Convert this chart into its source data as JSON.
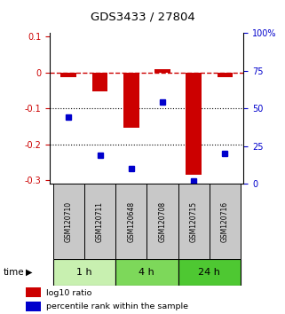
{
  "title": "GDS3433 / 27804",
  "samples": [
    "GSM120710",
    "GSM120711",
    "GSM120648",
    "GSM120708",
    "GSM120715",
    "GSM120716"
  ],
  "time_groups": [
    {
      "label": "1 h",
      "color": "#c8f0b0",
      "samples": [
        0,
        1
      ]
    },
    {
      "label": "4 h",
      "color": "#7dd85a",
      "samples": [
        2,
        3
      ]
    },
    {
      "label": "24 h",
      "color": "#4ec832",
      "samples": [
        4,
        5
      ]
    }
  ],
  "log10_ratio": [
    -0.012,
    -0.052,
    -0.155,
    0.008,
    -0.285,
    -0.012
  ],
  "percentile_rank": [
    44,
    19,
    10,
    54,
    2,
    20
  ],
  "bar_color": "#cc0000",
  "dot_color": "#0000cc",
  "ylim_left": [
    -0.31,
    0.11
  ],
  "ylim_right": [
    0,
    100
  ],
  "yticks_left": [
    0.1,
    0.0,
    -0.1,
    -0.2,
    -0.3
  ],
  "yticks_right": [
    100,
    75,
    50,
    25,
    0
  ],
  "dotted_lines": [
    -0.1,
    -0.2
  ],
  "bar_width": 0.5,
  "sample_box_color": "#c8c8c8",
  "legend_items": [
    {
      "color": "#cc0000",
      "label": "log10 ratio"
    },
    {
      "color": "#0000cc",
      "label": "percentile rank within the sample"
    }
  ]
}
